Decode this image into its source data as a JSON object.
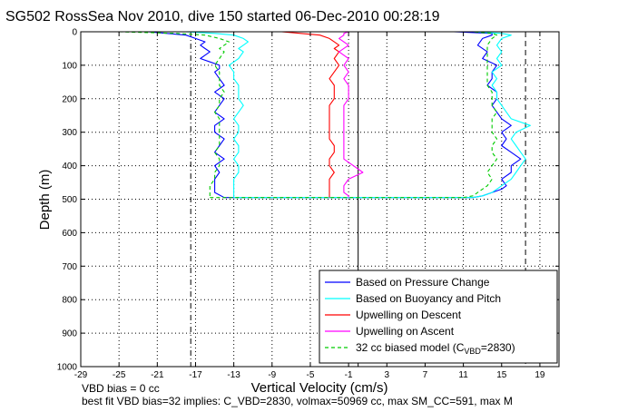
{
  "chart_data": {
    "type": "line",
    "title": "SG502 RossSea Nov 2010, dive 150 started 06-Dec-2010 00:28:19",
    "xlabel": "Vertical Velocity (cm/s)",
    "ylabel": "Depth (m)",
    "xlim": [
      -29,
      21
    ],
    "ylim": [
      0,
      1000
    ],
    "y_reversed": true,
    "grid": true,
    "legend_position": "bottom-right",
    "x_ticks": [
      -29,
      -25,
      -21,
      -17,
      -13,
      -9,
      -5,
      -1,
      3,
      7,
      11,
      15,
      19
    ],
    "x_tick_labels": [
      "-29",
      "-25",
      "-21",
      "-17",
      "-13",
      "-9",
      "-5",
      "-1",
      "3",
      "7",
      "11",
      "15",
      "19"
    ],
    "y_ticks": [
      0,
      100,
      200,
      300,
      400,
      500,
      600,
      700,
      800,
      900,
      1000
    ],
    "y_tick_labels": [
      "0",
      "100",
      "200",
      "300",
      "400",
      "500",
      "600",
      "700",
      "800",
      "900",
      "1000"
    ],
    "reference_lines": [
      {
        "x": 0,
        "style": "solid",
        "color": "#000000"
      },
      {
        "x": -17.5,
        "style": "dash-dot",
        "color": "#000000"
      },
      {
        "x": 17.5,
        "style": "dashed",
        "color": "#000000"
      }
    ],
    "series": [
      {
        "name": "Based on Pressure Change",
        "color": "#0000ff",
        "segments": [
          {
            "depth": [
              0,
              5,
              10,
              20,
              30,
              40,
              50,
              60,
              70,
              80,
              90,
              100,
              110,
              120,
              140,
              160,
              180,
              200,
              220,
              240,
              260,
              280,
              300,
              320,
              340,
              360,
              380,
              400,
              420,
              440,
              460,
              480,
              495
            ],
            "v": [
              -22,
              -20,
              -18,
              -17,
              -16,
              -16.5,
              -16,
              -15.5,
              -16,
              -16.5,
              -15.5,
              -14.5,
              -14.5,
              -15,
              -14.5,
              -14,
              -15,
              -14,
              -14.5,
              -15,
              -14,
              -15,
              -15,
              -14,
              -14.5,
              -15,
              -14,
              -15,
              -14.5,
              -15,
              -15,
              -15,
              -14
            ]
          },
          {
            "depth": [
              495,
              490,
              480,
              470,
              460,
              440,
              420,
              400,
              380,
              360,
              340,
              320,
              300,
              280,
              260,
              240,
              220,
              200,
              180,
              160,
              140,
              120,
              100,
              80,
              60,
              40,
              20,
              10,
              5,
              0
            ],
            "v": [
              12,
              13,
              14,
              15,
              15.5,
              15,
              16,
              16,
              17,
              16,
              15,
              15.5,
              15,
              16,
              15,
              14.5,
              14,
              14.5,
              14.5,
              13.5,
              14,
              14,
              14.5,
              13,
              13.5,
              12.5,
              13,
              14,
              14,
              10
            ]
          }
        ]
      },
      {
        "name": "Based on Buoyancy and Pitch",
        "color": "#00ffff",
        "segments": [
          {
            "depth": [
              0,
              5,
              10,
              20,
              30,
              40,
              50,
              60,
              80,
              100,
              120,
              140,
              160,
              180,
              200,
              220,
              240,
              260,
              280,
              300,
              320,
              340,
              360,
              380,
              400,
              420,
              440,
              460,
              480,
              495
            ],
            "v": [
              -18,
              -15,
              -13,
              -12,
              -11.5,
              -12,
              -12.5,
              -12,
              -12.5,
              -13.5,
              -13,
              -13,
              -12.5,
              -12.5,
              -12.5,
              -12,
              -12.5,
              -13,
              -12.5,
              -12.5,
              -13,
              -12.5,
              -12.5,
              -13,
              -12.5,
              -12.5,
              -13,
              -13,
              -13,
              -13
            ]
          },
          {
            "depth": [
              495,
              490,
              480,
              470,
              460,
              440,
              420,
              400,
              380,
              360,
              340,
              320,
              300,
              280,
              260,
              240,
              220,
              200,
              180,
              160,
              140,
              120,
              100,
              80,
              60,
              40,
              20,
              10,
              5,
              0
            ],
            "v": [
              12,
              13,
              14,
              14.5,
              15,
              16,
              16.5,
              17,
              17.5,
              17,
              16.5,
              16,
              16.5,
              18,
              16,
              15.5,
              15,
              14.5,
              14.5,
              14,
              14.5,
              14,
              15,
              14.5,
              15,
              14.5,
              15,
              16,
              15,
              12
            ]
          }
        ]
      },
      {
        "name": "Upwelling on Descent",
        "color": "#ff0000",
        "segments": [
          {
            "depth": [
              0,
              5,
              10,
              20,
              30,
              40,
              50,
              60,
              80,
              100,
              120,
              140,
              160,
              180,
              200,
              220,
              240,
              260,
              280,
              300,
              320,
              340,
              360,
              380,
              400,
              420,
              440,
              460,
              480,
              495
            ],
            "v": [
              -8,
              -6,
              -4,
              -3,
              -2.5,
              -2,
              -2.5,
              -2,
              -2.5,
              -2,
              -2.5,
              -3,
              -2.5,
              -2.5,
              -2.5,
              -3,
              -3,
              -3,
              -3,
              -3,
              -3,
              -2.5,
              -2.5,
              -3,
              -3,
              -2.5,
              -3,
              -3,
              -3,
              -3
            ]
          }
        ]
      },
      {
        "name": "Upwelling on Ascent",
        "color": "#ff00ff",
        "segments": [
          {
            "depth": [
              495,
              490,
              480,
              470,
              460,
              440,
              420,
              400,
              380,
              360,
              340,
              320,
              300,
              280,
              260,
              240,
              220,
              200,
              180,
              160,
              140,
              120,
              100,
              80,
              60,
              40,
              20,
              10,
              5,
              0
            ],
            "v": [
              -1,
              -1,
              -1.5,
              -1.5,
              -1.5,
              -1,
              0.5,
              -0.5,
              -1.5,
              -1.5,
              -1.5,
              -1.5,
              -1.5,
              -1.5,
              -1.5,
              -1.5,
              -1.5,
              -1,
              -1,
              -1,
              -1.5,
              -1,
              -1.5,
              -1,
              -2,
              -1,
              -2,
              -1.5,
              -1.5,
              -1
            ]
          }
        ]
      },
      {
        "name": "32 cc biased model (C_VBD=2830)",
        "color": "#00cc00",
        "dashed": true,
        "segments": [
          {
            "depth": [
              0,
              5,
              10,
              20,
              30,
              40,
              50,
              60,
              80,
              100,
              120,
              140,
              160,
              180,
              200,
              220,
              240,
              260,
              280,
              300,
              320,
              340,
              360,
              380,
              400,
              420,
              440,
              460,
              480,
              495
            ],
            "v": [
              -25,
              -19,
              -16,
              -14.5,
              -13.5,
              -14,
              -14.5,
              -14,
              -14.5,
              -15,
              -14.5,
              -14.5,
              -14.5,
              -14,
              -14.5,
              -14.5,
              -15,
              -14.5,
              -14.5,
              -14.5,
              -14.5,
              -14.5,
              -15,
              -14.5,
              -14.5,
              -15,
              -15,
              -15.5,
              -15.5,
              -15.5
            ]
          },
          {
            "depth": [
              495,
              490,
              480,
              470,
              460,
              440,
              420,
              400,
              380,
              360,
              340,
              320,
              300,
              280,
              260,
              240,
              220,
              200,
              180,
              160,
              140,
              120,
              100,
              80,
              60,
              40,
              20,
              10,
              5,
              0
            ],
            "v": [
              11,
              12,
              12.5,
              13,
              13.5,
              14,
              13.5,
              14,
              14.5,
              14,
              14,
              14.5,
              14,
              14,
              14,
              14.5,
              14,
              14,
              14,
              13.5,
              13.5,
              13.5,
              13.5,
              13.5,
              13.5,
              13.5,
              14,
              14.5,
              14,
              12
            ]
          }
        ]
      }
    ],
    "legend": [
      {
        "label": "Based on Pressure Change",
        "color": "#0000ff",
        "style": "solid"
      },
      {
        "label": "Based on Buoyancy and Pitch",
        "color": "#00ffff",
        "style": "solid"
      },
      {
        "label": "Upwelling on Descent",
        "color": "#ff0000",
        "style": "solid"
      },
      {
        "label": "Upwelling on Ascent",
        "color": "#ff00ff",
        "style": "solid"
      },
      {
        "label_main": "32 cc biased model (C",
        "label_sub": "VBD",
        "label_tail": "=2830)",
        "color": "#00cc00",
        "style": "dashed"
      }
    ],
    "footer": {
      "line1": "VBD bias = 0 cc",
      "line2": "best fit VBD bias=32 implies: C_VBD=2830, volmax=50969 cc, max SM_CC=591, max M"
    }
  }
}
